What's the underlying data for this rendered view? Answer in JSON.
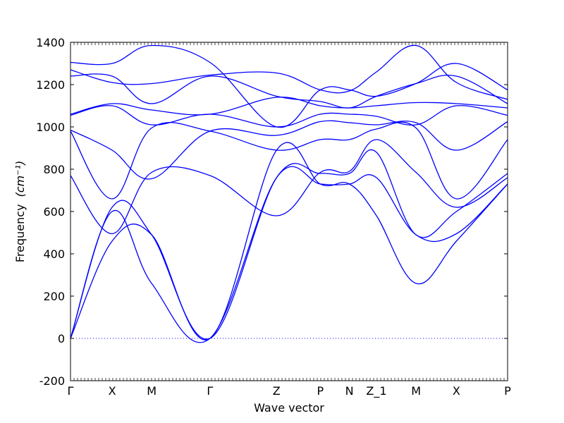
{
  "chart_data": {
    "type": "line",
    "xlabel": "Wave vector",
    "ylabel": "Frequency",
    "ylabel_unit": "(cm⁻¹)",
    "ylim": [
      -200,
      1400
    ],
    "yticks": [
      -200,
      0,
      200,
      400,
      600,
      800,
      1000,
      1200,
      1400
    ],
    "xlim": [
      0,
      10.5
    ],
    "xticks": [
      {
        "x": 0,
        "label": "Γ"
      },
      {
        "x": 1,
        "label": "X"
      },
      {
        "x": 1.95,
        "label": "M"
      },
      {
        "x": 3.35,
        "label": "Γ"
      },
      {
        "x": 4.95,
        "label": "Z"
      },
      {
        "x": 6,
        "label": "P"
      },
      {
        "x": 6.7,
        "label": "N"
      },
      {
        "x": 7.35,
        "label": "Z_1"
      },
      {
        "x": 8.3,
        "label": "M"
      },
      {
        "x": 9.27,
        "label": "X"
      },
      {
        "x": 10.5,
        "label": "P"
      }
    ],
    "zero_line": true,
    "color": "#0000ff",
    "series": [
      {
        "x": [
          0,
          1,
          1.95,
          3.35,
          4.95,
          6,
          6.7,
          7.35,
          8.3,
          9.27,
          10.5
        ],
        "y": [
          0,
          460,
          490,
          0,
          890,
          730,
          730,
          580,
          260,
          460,
          730
        ]
      },
      {
        "x": [
          0,
          1,
          1.95,
          3.35,
          4.95,
          6,
          6.7,
          7.35,
          8.3,
          9.27,
          10.5
        ],
        "y": [
          0,
          600,
          260,
          0,
          760,
          730,
          730,
          760,
          490,
          495,
          730
        ]
      },
      {
        "x": [
          0,
          1,
          1.95,
          3.35,
          4.95,
          6,
          6.7,
          7.35,
          8.3,
          9.27,
          10.5
        ],
        "y": [
          0,
          620,
          490,
          0,
          760,
          780,
          780,
          880,
          490,
          600,
          780
        ]
      },
      {
        "x": [
          0,
          1,
          1.95,
          3.35,
          4.95,
          6,
          6.7,
          7.35,
          8.3,
          9.27,
          10.5
        ],
        "y": [
          770,
          495,
          785,
          770,
          580,
          785,
          790,
          940,
          785,
          620,
          760
        ]
      },
      {
        "x": [
          0,
          1,
          1.95,
          3.35,
          4.95,
          6,
          6.7,
          7.35,
          8.3,
          9.27,
          10.5
        ],
        "y": [
          980,
          660,
          995,
          980,
          890,
          940,
          940,
          990,
          995,
          660,
          940
        ]
      },
      {
        "x": [
          0,
          1,
          1.95,
          3.35,
          4.95,
          6,
          6.7,
          7.35,
          8.3,
          9.27,
          10.5
        ],
        "y": [
          985,
          890,
          755,
          980,
          960,
          1025,
          1020,
          1010,
          1020,
          890,
          1025
        ]
      },
      {
        "x": [
          0,
          1,
          1.95,
          3.35,
          4.95,
          6,
          6.7,
          7.35,
          8.3,
          9.27,
          10.5
        ],
        "y": [
          1055,
          1100,
          1010,
          1060,
          1000,
          1060,
          1060,
          1050,
          1010,
          1100,
          1055
        ]
      },
      {
        "x": [
          0,
          1,
          1.95,
          3.35,
          4.95,
          6,
          6.7,
          7.35,
          8.3,
          9.27,
          10.5
        ],
        "y": [
          1060,
          1110,
          1080,
          1060,
          1140,
          1100,
          1090,
          1100,
          1115,
          1110,
          1090
        ]
      },
      {
        "x": [
          0,
          1,
          1.95,
          3.35,
          4.95,
          6,
          6.7,
          7.35,
          8.3,
          9.27,
          10.5
        ],
        "y": [
          1240,
          1240,
          1110,
          1240,
          1145,
          1120,
          1090,
          1145,
          1205,
          1240,
          1110
        ]
      },
      {
        "x": [
          0,
          1,
          1.95,
          3.35,
          4.95,
          6,
          6.7,
          7.35,
          8.3,
          9.27,
          10.5
        ],
        "y": [
          1270,
          1210,
          1205,
          1245,
          1255,
          1175,
          1170,
          1260,
          1385,
          1210,
          1130
        ]
      },
      {
        "x": [
          0,
          1,
          1.95,
          3.35,
          4.95,
          6,
          6.7,
          7.35,
          8.3,
          9.27,
          10.5
        ],
        "y": [
          1305,
          1300,
          1385,
          1305,
          1000,
          1175,
          1175,
          1145,
          1205,
          1300,
          1175
        ]
      }
    ]
  }
}
